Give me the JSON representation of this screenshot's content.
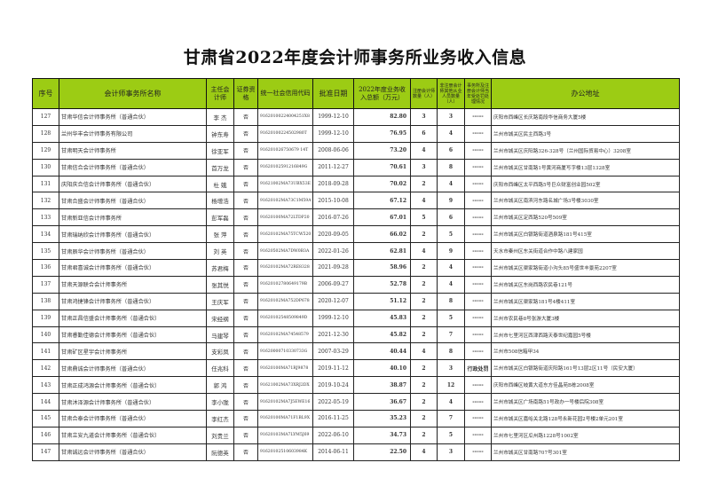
{
  "title": "甘肃省2022年度会计师事务所业务收入信息",
  "headers": {
    "seq": "序号",
    "name": "会计师事务所名称",
    "partner": "主任会计师",
    "securities": "证券资格",
    "code": "统一社会信用代码",
    "date": "批准日期",
    "revenue": "2022年度业务收入总额（万元）",
    "cpa": "注册会计师数量（人）",
    "noncpa": "非注册会计师其他从业人员数量（人）",
    "penalty": "事务所及注册会计师当年受处罚处理情况",
    "address": "办公地址"
  },
  "rows": [
    {
      "seq": "127",
      "name": "甘肃华信会计师事务所（普通合伙）",
      "partner": "李 杰",
      "securities": "否",
      "code": "91620100224004251X8",
      "date": "1999-12-10",
      "revenue": "82.80",
      "cpa": "3",
      "noncpa": "3",
      "penalty": "-----",
      "address": "庆阳市西峰区长庆路南段华信商务大厦5楼"
    },
    {
      "seq": "128",
      "name": "兰州华丰会计师事务有限公司",
      "partner": "钟东寿",
      "securities": "否",
      "code": "91620100224502980T",
      "date": "1999-12-10",
      "revenue": "76.95",
      "cpa": "6",
      "noncpa": "4",
      "penalty": "-----",
      "address": "兰州市城关区民主西路3号"
    },
    {
      "seq": "129",
      "name": "甘肃明天会计师事务所",
      "partner": "徐亚军",
      "securities": "否",
      "code": "916201026750679 14T",
      "date": "2008-06-06",
      "revenue": "73.20",
      "cpa": "4",
      "noncpa": "6",
      "penalty": "-----",
      "address": "兰州市城关区庆阳路326-328号（兰州国际贸易中心）3208室"
    },
    {
      "seq": "130",
      "name": "甘肃信合会计师事务所（普通合伙）",
      "partner": "首万龙",
      "securities": "否",
      "code": "91620102591216849G",
      "date": "2011-12-27",
      "revenue": "70.61",
      "cpa": "3",
      "noncpa": "8",
      "penalty": "-----",
      "address": "兰州市城关区甘南路1号黄河商厦写字楼13层1328室"
    },
    {
      "seq": "131",
      "name": "庆阳庆合信会计师事务所（普通合伙）",
      "partner": "杜 娥",
      "securities": "否",
      "code": "91621002MA73UBX53E",
      "date": "2018-09-28",
      "revenue": "70.02",
      "cpa": "2",
      "noncpa": "4",
      "penalty": "-----",
      "address": "庆阳市西峰区太平西路5号巨众财富创业园502室"
    },
    {
      "seq": "132",
      "name": "甘肃合盛会计师事务所（普通合伙）",
      "partner": "杨增浩",
      "securities": "否",
      "code": "91620102MA73C1M59A",
      "date": "2015-10-08",
      "revenue": "67.12",
      "cpa": "4",
      "noncpa": "9",
      "penalty": "-----",
      "address": "兰州市城关区南滨河东路名城广场3号楼3030室"
    },
    {
      "seq": "133",
      "name": "甘肃新亚信会计师事务所",
      "partner": "彭军磊",
      "securities": "否",
      "code": "91620100MA72LTDP20",
      "date": "2016-07-26",
      "revenue": "67.01",
      "cpa": "5",
      "noncpa": "6",
      "penalty": "-----",
      "address": "兰州市城关区定西路520号509室"
    },
    {
      "seq": "134",
      "name": "甘肃瑞纳欣会计师事务所（普通合伙）",
      "partner": "张 萍",
      "securities": "否",
      "code": "91620102MA75TCW520",
      "date": "2020-09-05",
      "revenue": "66.02",
      "cpa": "2",
      "noncpa": "5",
      "penalty": "-----",
      "address": "兰州市城关区白银路街道酒泉路181号415室"
    },
    {
      "seq": "135",
      "name": "甘肃辰华会计师事务所（普通合伙）",
      "partner": "刘 英",
      "securities": "否",
      "code": "91620502MA7DW0B3A",
      "date": "2022-01-26",
      "revenue": "62.81",
      "cpa": "4",
      "noncpa": "9",
      "penalty": "-----",
      "address": "天水市秦州区东关街道合作中路八建家园"
    },
    {
      "seq": "136",
      "name": "甘肃君喜诚会计师事务所（普通合伙）",
      "partner": "苏君梅",
      "securities": "否",
      "code": "91620102MA72RE8328",
      "date": "2021-09-28",
      "revenue": "58.96",
      "cpa": "2",
      "noncpa": "4",
      "penalty": "-----",
      "address": "兰州市城关区渠家路街道小沟头85号盛世丰景苑2207室"
    },
    {
      "seq": "137",
      "name": "甘肃天源联合会计师事务所",
      "partner": "张其悦",
      "securities": "否",
      "code": "91620102780649179B",
      "date": "2006-09-27",
      "revenue": "52.78",
      "cpa": "2",
      "noncpa": "4",
      "penalty": "-----",
      "address": "兰州市城关区东岗西路农民巷121号"
    },
    {
      "seq": "138",
      "name": "甘肃鸿捷锋会计师事务所（普通合伙）",
      "partner": "王庆军",
      "securities": "否",
      "code": "91620102MA752DP678",
      "date": "2020-12-07",
      "revenue": "51.12",
      "cpa": "2",
      "noncpa": "8",
      "penalty": "-----",
      "address": "兰州市城关区渠家路181号4楼411室"
    },
    {
      "seq": "139",
      "name": "甘肃正昌信盛会计师事务所（普通合伙）",
      "partner": "宋经纲",
      "securities": "否",
      "code": "91620102548509849D",
      "date": "1999-12-10",
      "revenue": "45.83",
      "cpa": "2",
      "noncpa": "5",
      "penalty": "-----",
      "address": "兰州市农民巷8号张游大厦3楼"
    },
    {
      "seq": "140",
      "name": "甘肃睿勤佳德会计师事务所（普通合伙）",
      "partner": "马建琴",
      "securities": "否",
      "code": "91620102MA74548579",
      "date": "2021-12-30",
      "revenue": "45.82",
      "cpa": "2",
      "noncpa": "7",
      "penalty": "-----",
      "address": "兰州市七里河区西津西路天泰世纪嘉园5号楼"
    },
    {
      "seq": "141",
      "name": "甘肃矿区星宇会计师事务所",
      "partner": "支彩凤",
      "securities": "否",
      "code": "91620000710330733G",
      "date": "2007-03-29",
      "revenue": "40.44",
      "cpa": "4",
      "noncpa": "8",
      "penalty": "-----",
      "address": "兰州市508信箱甲34"
    },
    {
      "seq": "142",
      "name": "甘肃鼎诚会计师事务所（普通合伙）",
      "partner": "任兆科",
      "securities": "否",
      "code": "91620100MA71RJ9878",
      "date": "2019-11-12",
      "revenue": "40.10",
      "cpa": "2",
      "noncpa": "3",
      "penalty": "行政处罚",
      "address": "兰州市城关区白银路街道庆阳路161号13层2区11号（民安大厦）"
    },
    {
      "seq": "143",
      "name": "甘肃正成鸿源会计师事务所（普通合伙）",
      "partner": "郭 鸿",
      "securities": "否",
      "code": "91621002MA73XRJ2DX",
      "date": "2019-10-24",
      "revenue": "38.87",
      "cpa": "2",
      "noncpa": "12",
      "penalty": "-----",
      "address": "庆阳市西峰区岐黄大道东方佳晶苑B栋2008室"
    },
    {
      "seq": "144",
      "name": "甘肃沐泽源会计师事务所（普通合伙）",
      "partner": "李小陇",
      "securities": "否",
      "code": "91620102MA7J5EWE16",
      "date": "2022-05-19",
      "revenue": "36.67",
      "cpa": "2",
      "noncpa": "4",
      "penalty": "-----",
      "address": "兰州市城关区广场南路51号政办一号楼后院308室"
    },
    {
      "seq": "145",
      "name": "甘肃合泰会计师事务所（普通合伙）",
      "partner": "李红杰",
      "securities": "否",
      "code": "91620100MA71F1BL9X",
      "date": "2016-11-25",
      "revenue": "35.23",
      "cpa": "2",
      "noncpa": "7",
      "penalty": "-----",
      "address": "兰州市城关区嘉峪关北路128号永新花园2号楼2单元201室"
    },
    {
      "seq": "146",
      "name": "甘肃立安九道会计师事务所（普通合伙）",
      "partner": "刘贵兰",
      "securities": "否",
      "code": "91620103MA7LYM5J69",
      "date": "2022-06-10",
      "revenue": "34.73",
      "cpa": "2",
      "noncpa": "5",
      "penalty": "-----",
      "address": "兰州市七里河区瓜州路1228号1002室"
    },
    {
      "seq": "147",
      "name": "甘肃诚远会计师事务所（普通合伙）",
      "partner": "阮德英",
      "securities": "否",
      "code": "91620102510603984K",
      "date": "2014-06-11",
      "revenue": "22.50",
      "cpa": "4",
      "noncpa": "3",
      "penalty": "-----",
      "address": "兰州市城关区甘南路707号301室"
    }
  ]
}
